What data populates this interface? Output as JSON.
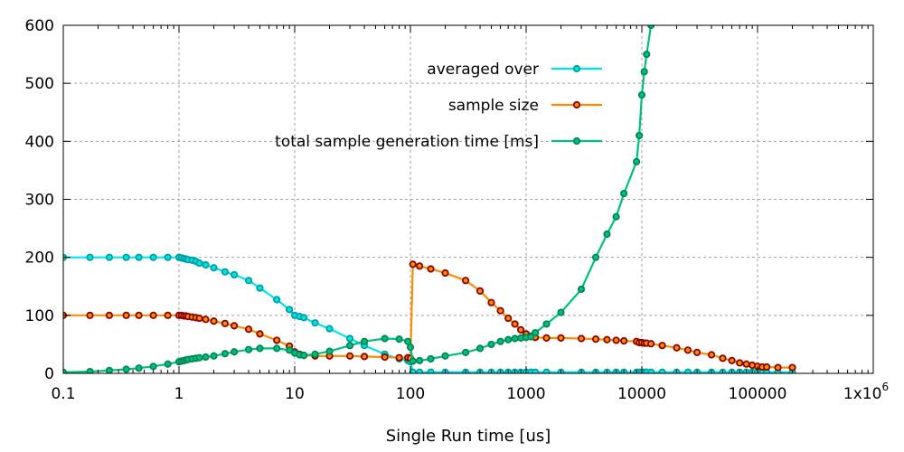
{
  "chart_data": {
    "type": "line",
    "title": "",
    "xlabel": "Single Run time [us]",
    "ylabel": "",
    "x_scale": "log",
    "xlim": [
      0.1,
      1000000
    ],
    "ylim": [
      0,
      600
    ],
    "grid": true,
    "legend_position": "top-right",
    "x_ticks": [
      "0.1",
      "1",
      "10",
      "100",
      "1000",
      "10000",
      "100000",
      "1x10^6"
    ],
    "x_tick_values": [
      0.1,
      1,
      10,
      100,
      1000,
      10000,
      100000,
      1000000
    ],
    "y_ticks": [
      "0",
      "100",
      "200",
      "300",
      "400",
      "500",
      "600"
    ],
    "y_tick_values": [
      0,
      100,
      200,
      300,
      400,
      500,
      600
    ],
    "series": [
      {
        "name": "averaged over",
        "color": "#00e5e5",
        "marker_edge": "#00a0a0",
        "x": [
          0.1,
          0.17,
          0.25,
          0.35,
          0.45,
          0.6,
          0.8,
          1.0,
          1.05,
          1.1,
          1.15,
          1.2,
          1.3,
          1.4,
          1.5,
          1.7,
          2,
          2.5,
          3,
          4,
          5,
          7,
          9,
          10,
          11,
          12,
          15,
          20,
          30,
          40,
          60,
          80,
          95,
          100,
          105,
          120,
          150,
          200,
          300,
          400,
          500,
          600,
          700,
          800,
          900,
          1000,
          1100,
          1200,
          1500,
          2000,
          3000,
          4000,
          5000,
          6000,
          7000,
          9000,
          9500,
          10000,
          10500,
          11000,
          12000,
          15000,
          20000,
          25000,
          30000,
          40000,
          50000,
          60000,
          70000,
          80000,
          90000,
          100000,
          110000,
          120000,
          150000,
          200000
        ],
        "y": [
          200,
          200,
          200,
          200,
          200,
          200,
          200,
          200,
          199,
          198,
          197,
          196,
          195,
          193,
          190,
          187,
          182,
          175,
          170,
          160,
          147,
          127,
          110,
          100,
          98,
          96,
          87,
          77,
          60,
          48,
          33,
          25,
          22,
          20,
          2,
          2,
          2,
          2,
          2,
          2,
          2,
          2,
          2,
          2,
          2,
          2,
          2,
          2,
          2,
          2,
          2,
          2,
          2,
          2,
          2,
          2,
          2,
          2,
          2,
          2,
          2,
          2,
          2,
          2,
          2,
          2,
          2,
          2,
          2,
          2,
          2,
          2,
          2,
          2,
          2,
          2
        ]
      },
      {
        "name": "sample size",
        "color": "#ff8c00",
        "marker_edge": "#8b0000",
        "x": [
          0.1,
          0.17,
          0.25,
          0.35,
          0.45,
          0.6,
          0.8,
          1.0,
          1.05,
          1.1,
          1.15,
          1.2,
          1.3,
          1.4,
          1.5,
          1.7,
          2,
          2.5,
          3,
          4,
          5,
          7,
          9,
          10,
          11,
          12,
          15,
          20,
          30,
          40,
          60,
          80,
          95,
          100,
          105,
          120,
          150,
          200,
          300,
          400,
          500,
          600,
          700,
          800,
          900,
          1000,
          1100,
          1200,
          1500,
          2000,
          3000,
          4000,
          5000,
          6000,
          7000,
          9000,
          9500,
          10000,
          10500,
          11000,
          12000,
          15000,
          20000,
          25000,
          30000,
          40000,
          50000,
          60000,
          70000,
          80000,
          90000,
          100000,
          110000,
          120000,
          150000,
          200000
        ],
        "y": [
          100,
          100,
          100,
          100,
          100,
          100,
          100,
          100,
          100,
          99,
          99,
          98,
          97,
          96,
          95,
          93,
          90,
          86,
          82,
          76,
          68,
          57,
          47,
          37,
          33,
          31,
          30,
          30,
          30,
          29,
          28,
          27,
          27,
          26,
          188,
          185,
          180,
          173,
          160,
          142,
          122,
          108,
          95,
          85,
          75,
          68,
          64,
          62,
          61,
          61,
          60,
          59,
          58,
          57,
          56,
          55,
          53,
          53,
          52,
          52,
          51,
          48,
          44,
          40,
          36,
          32,
          26,
          22,
          18,
          16,
          14,
          12,
          11,
          11,
          10,
          10
        ]
      },
      {
        "name": "total sample generation time [ms]",
        "color": "#00c080",
        "marker_edge": "#008855",
        "x": [
          0.1,
          0.17,
          0.25,
          0.35,
          0.45,
          0.6,
          0.8,
          1.0,
          1.05,
          1.1,
          1.15,
          1.2,
          1.3,
          1.4,
          1.5,
          1.7,
          2,
          2.5,
          3,
          4,
          5,
          7,
          9,
          10,
          11,
          12,
          15,
          20,
          30,
          40,
          60,
          80,
          95,
          100,
          105,
          120,
          150,
          200,
          300,
          400,
          500,
          600,
          700,
          800,
          900,
          1000,
          1100,
          1200,
          1500,
          2000,
          3000,
          4000,
          5000,
          6000,
          7000,
          9000,
          9500,
          10000,
          10500,
          11000,
          12000
        ],
        "y": [
          2,
          3,
          5,
          7,
          9,
          12,
          16,
          20,
          21,
          22,
          23,
          24,
          25,
          26,
          27,
          28,
          30,
          34,
          37,
          41,
          43,
          43,
          40,
          35,
          32,
          31,
          33,
          38,
          48,
          55,
          60,
          59,
          55,
          45,
          21,
          22,
          25,
          30,
          36,
          43,
          50,
          55,
          58,
          60,
          61,
          62,
          63,
          70,
          85,
          105,
          145,
          200,
          240,
          270,
          310,
          365,
          410,
          480,
          520,
          550,
          600
        ]
      }
    ]
  }
}
